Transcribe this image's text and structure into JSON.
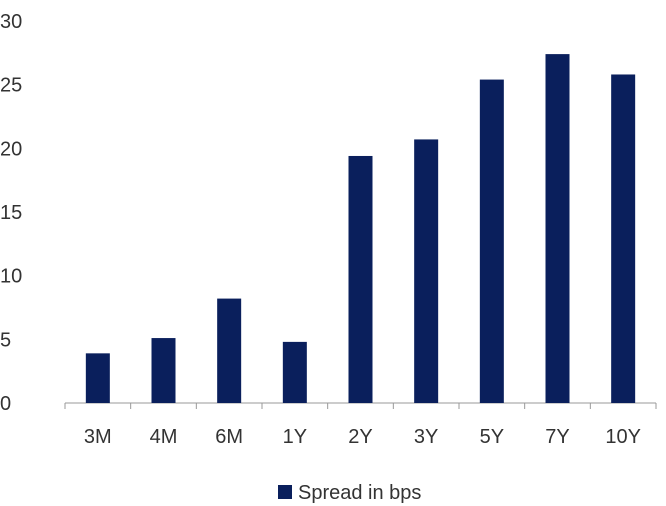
{
  "chart_data": {
    "type": "bar",
    "categories": [
      "3M",
      "4M",
      "6M",
      "1Y",
      "2Y",
      "3Y",
      "5Y",
      "7Y",
      "10Y"
    ],
    "series": [
      {
        "name": "Spread in bps",
        "values": [
          3.9,
          5.1,
          8.2,
          4.8,
          19.4,
          20.7,
          25.4,
          27.4,
          25.8
        ],
        "color": "#0a1f5c"
      }
    ],
    "ylim": [
      0,
      30
    ],
    "yticks": [
      0,
      5,
      10,
      15,
      20,
      25,
      30
    ],
    "grid": false,
    "legend_position": "bottom-center",
    "axis_color": "#999999",
    "text_color": "#333333"
  }
}
